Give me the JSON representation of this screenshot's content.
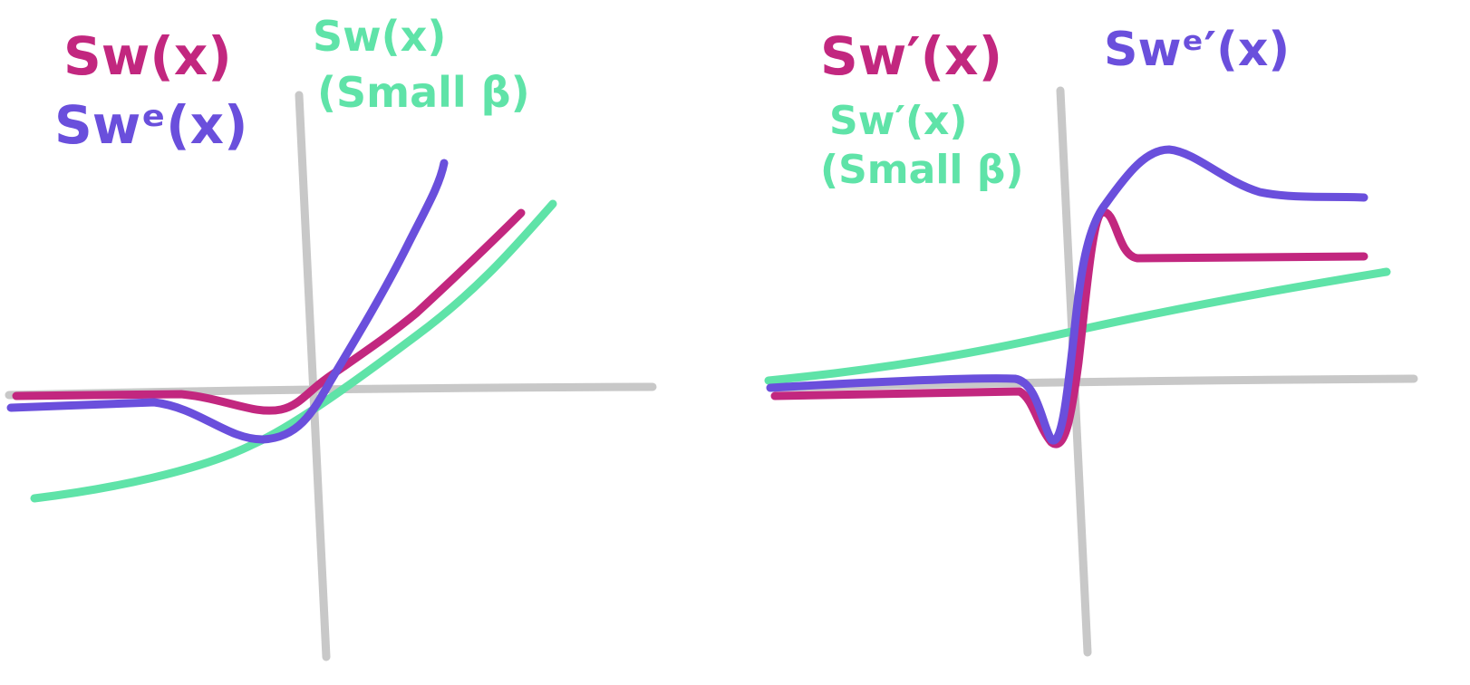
{
  "panels": [
    {
      "labels": [
        {
          "text": "Sw(x)"
        },
        {
          "text": "Swᵉ(x)"
        },
        {
          "text": "Sw(x)"
        },
        {
          "text": "(Small β)"
        }
      ]
    },
    {
      "labels": [
        {
          "text": "Sw′(x)"
        },
        {
          "text": "Swᵉ′(x)"
        },
        {
          "text": "Sw′(x)"
        },
        {
          "text": "(Small β)"
        }
      ]
    }
  ]
}
